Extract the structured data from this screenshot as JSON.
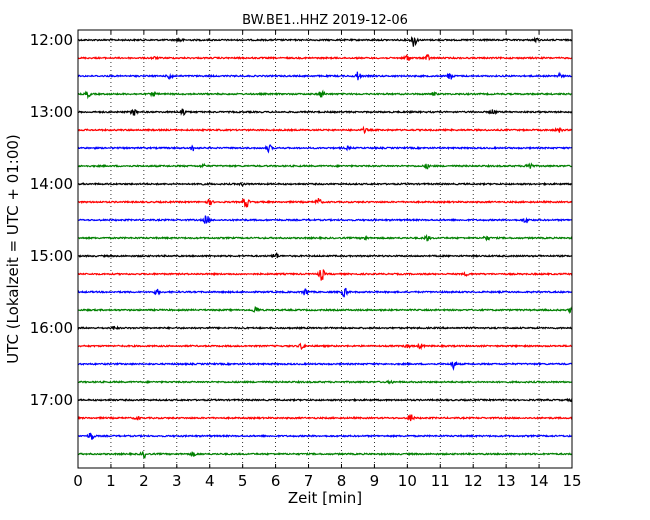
{
  "chart_data": {
    "type": "line",
    "title": "BW.BE1..HHZ 2019-12-06",
    "xlabel": "Zeit  [min]",
    "ylabel": "UTC (Lokalzeit = UTC + 01:00)",
    "xlim": [
      0,
      15
    ],
    "x_ticks": [
      "0",
      "1",
      "2",
      "3",
      "4",
      "5",
      "6",
      "7",
      "8",
      "9",
      "10",
      "11",
      "12",
      "13",
      "14",
      "15"
    ],
    "y_tick_labels": [
      "12:00",
      "13:00",
      "14:00",
      "15:00",
      "16:00",
      "17:00"
    ],
    "grid": "vertical dotted",
    "trace_colors": [
      "#000000",
      "#ff0000",
      "#0000ff",
      "#008000"
    ],
    "traces": [
      {
        "start": "12:00",
        "events": [
          [
            3.1,
            0.3
          ],
          [
            10.2,
            1.0
          ],
          [
            13.9,
            0.25
          ]
        ]
      },
      {
        "start": "12:15",
        "events": [
          [
            2.3,
            0.15
          ],
          [
            10.0,
            0.5
          ],
          [
            10.6,
            0.45
          ]
        ]
      },
      {
        "start": "12:30",
        "events": [
          [
            2.8,
            0.5
          ],
          [
            8.5,
            0.6
          ],
          [
            11.3,
            0.5
          ],
          [
            14.6,
            0.3
          ]
        ]
      },
      {
        "start": "12:45",
        "events": [
          [
            0.3,
            0.4
          ],
          [
            2.3,
            0.3
          ],
          [
            7.4,
            0.5
          ],
          [
            10.8,
            0.2
          ]
        ]
      },
      {
        "start": "13:00",
        "events": [
          [
            1.7,
            0.5
          ],
          [
            3.2,
            0.6
          ],
          [
            12.6,
            0.3
          ]
        ]
      },
      {
        "start": "13:15",
        "events": [
          [
            8.7,
            0.3
          ],
          [
            14.6,
            0.35
          ]
        ]
      },
      {
        "start": "13:30",
        "events": [
          [
            3.5,
            0.4
          ],
          [
            5.8,
            0.5
          ],
          [
            8.2,
            0.2
          ]
        ]
      },
      {
        "start": "13:45",
        "events": [
          [
            3.8,
            0.2
          ],
          [
            10.6,
            0.3
          ],
          [
            13.7,
            0.7
          ]
        ]
      },
      {
        "start": "14:00",
        "events": [
          [
            3.7,
            0.2
          ],
          [
            5.0,
            0.2
          ]
        ]
      },
      {
        "start": "14:15",
        "events": [
          [
            4.0,
            0.4
          ],
          [
            5.1,
            0.8
          ],
          [
            7.3,
            0.5
          ]
        ]
      },
      {
        "start": "14:30",
        "events": [
          [
            3.9,
            0.7
          ],
          [
            13.6,
            0.4
          ]
        ]
      },
      {
        "start": "14:45",
        "events": [
          [
            8.7,
            0.25
          ],
          [
            10.6,
            0.4
          ],
          [
            12.4,
            0.3
          ]
        ]
      },
      {
        "start": "15:00",
        "events": [
          [
            6.0,
            0.5
          ]
        ]
      },
      {
        "start": "15:15",
        "events": [
          [
            7.4,
            0.9
          ],
          [
            11.8,
            0.2
          ]
        ]
      },
      {
        "start": "15:30",
        "events": [
          [
            2.4,
            0.35
          ],
          [
            6.9,
            0.5
          ],
          [
            8.1,
            0.7
          ]
        ]
      },
      {
        "start": "15:45",
        "events": [
          [
            5.4,
            0.5
          ],
          [
            15.0,
            0.6
          ]
        ]
      },
      {
        "start": "16:00",
        "events": [
          [
            1.1,
            0.25
          ]
        ]
      },
      {
        "start": "16:15",
        "events": [
          [
            6.8,
            0.45
          ],
          [
            10.0,
            0.25
          ],
          [
            10.4,
            0.3
          ]
        ]
      },
      {
        "start": "16:30",
        "events": [
          [
            11.4,
            0.6
          ]
        ]
      },
      {
        "start": "16:45",
        "events": [
          [
            9.5,
            0.15
          ]
        ]
      },
      {
        "start": "17:00",
        "events": [
          [
            15.0,
            0.3
          ]
        ]
      },
      {
        "start": "17:15",
        "events": [
          [
            1.8,
            0.2
          ],
          [
            10.1,
            0.6
          ]
        ]
      },
      {
        "start": "17:30",
        "events": [
          [
            0.4,
            0.6
          ]
        ]
      },
      {
        "start": "17:45",
        "events": [
          [
            2.0,
            0.45
          ],
          [
            3.5,
            0.3
          ]
        ]
      }
    ]
  }
}
